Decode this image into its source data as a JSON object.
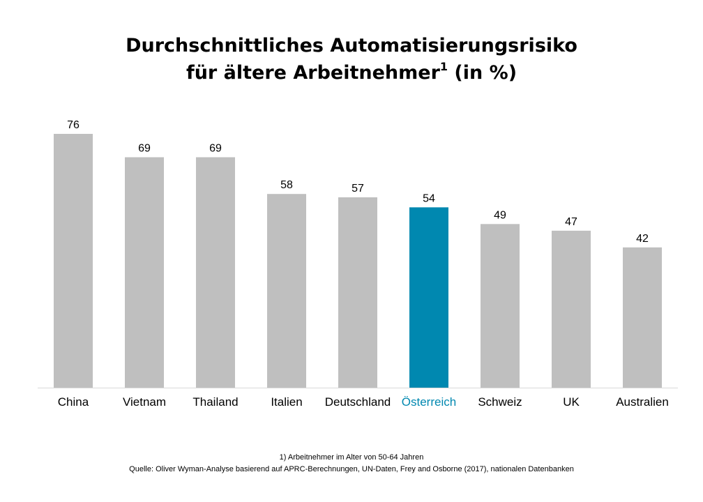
{
  "chart_data": {
    "type": "bar",
    "title_line1": "Durchschnittliches Automatisierungsrisiko",
    "title_line2_main": "für ältere Arbeitnehmer",
    "title_line2_sup": "1",
    "title_line2_tail": " (in %)",
    "categories": [
      "China",
      "Vietnam",
      "Thailand",
      "Italien",
      "Deutschland",
      "Österreich",
      "Schweiz",
      "UK",
      "Australien"
    ],
    "values": [
      76,
      69,
      69,
      58,
      57,
      54,
      49,
      47,
      42
    ],
    "highlight_index": 5,
    "ylim": [
      0,
      76
    ],
    "grid": false,
    "colors": {
      "bar": "#bfbfbf",
      "highlight": "#0088b0",
      "axis": "#d9d9d9",
      "label": "#000000"
    }
  },
  "footnotes": {
    "note": "1) Arbeitnehmer  im Alter von 50-64 Jahren",
    "source": "Quelle: Oliver Wyman-Analyse basierend auf APRC-Berechnungen,  UN-Daten,  Frey and Osborne (2017), nationalen Datenbanken"
  }
}
